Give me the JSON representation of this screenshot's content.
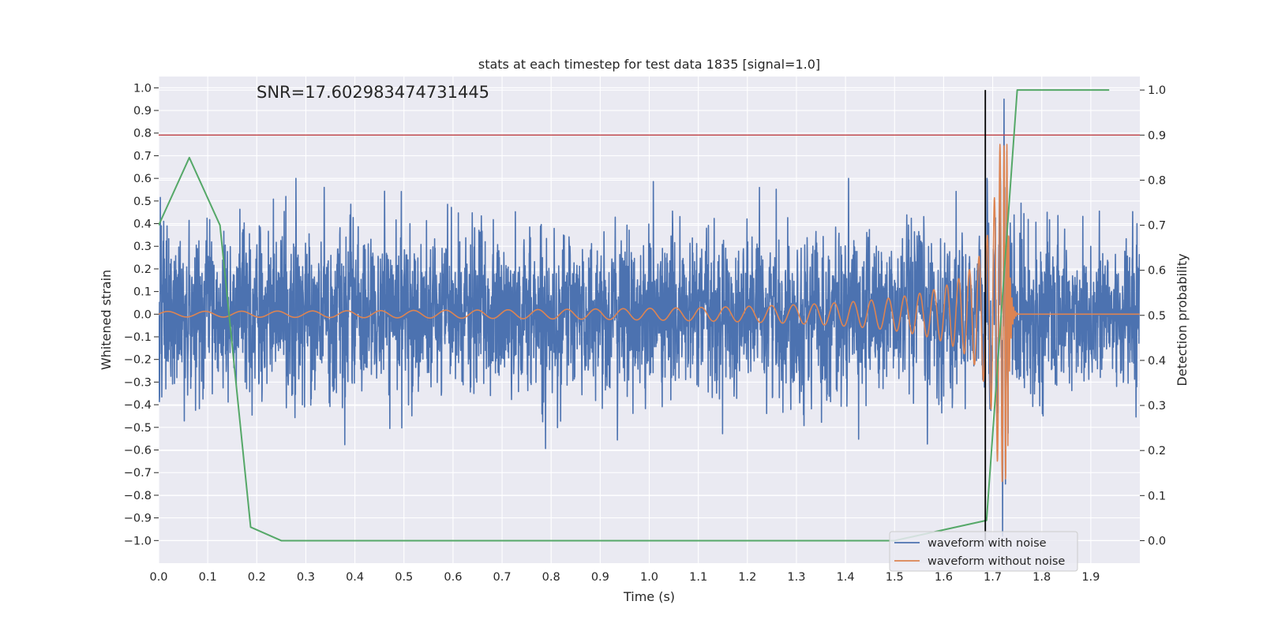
{
  "colors": {
    "background": "#eaeaf2",
    "grid": "#ffffff",
    "noisy": "#4c72b0",
    "clean": "#dd8452",
    "probability": "#55a868",
    "threshold": "#c44e52",
    "merger_marker": "#000000"
  },
  "chart_data": {
    "type": "line",
    "title": "stats at each timestep for test data 1835 [signal=1.0]",
    "annotation": "SNR=17.602983474731445",
    "xlabel": "Time (s)",
    "ylabel": "Whitened strain",
    "y2label": "Detection probability",
    "xlim": [
      0.0,
      2.0
    ],
    "ylim": [
      -1.1,
      1.05
    ],
    "y2lim": [
      -0.05,
      1.03
    ],
    "x_ticks": [
      "0.0",
      "0.1",
      "0.2",
      "0.3",
      "0.4",
      "0.5",
      "0.6",
      "0.7",
      "0.8",
      "0.9",
      "1.0",
      "1.1",
      "1.2",
      "1.3",
      "1.4",
      "1.5",
      "1.6",
      "1.7",
      "1.8",
      "1.9"
    ],
    "y_ticks": [
      "1.0",
      "0.9",
      "0.8",
      "0.7",
      "0.6",
      "0.5",
      "0.4",
      "0.3",
      "0.2",
      "0.1",
      "0.0",
      "−0.1",
      "−0.2",
      "−0.3",
      "−0.4",
      "−0.5",
      "−0.6",
      "−0.7",
      "−0.8",
      "−0.9",
      "−1.0"
    ],
    "y2_ticks": [
      "1.0",
      "0.9",
      "0.8",
      "0.7",
      "0.6",
      "0.5",
      "0.4",
      "0.3",
      "0.2",
      "0.1",
      "0.0"
    ],
    "grid": true,
    "legend_placement": "lower-right",
    "series": [
      {
        "name": "waveform with noise",
        "axis": "left",
        "style": "dense-noise",
        "noise_std": 0.16,
        "sample_rate": 2048,
        "glitch_at": 1.72,
        "glitch_extent": [
          -0.98,
          0.95
        ]
      },
      {
        "name": "waveform without noise",
        "axis": "left",
        "style": "chirp",
        "start_amplitude": 0.012,
        "peak_amplitude": 0.75,
        "start_frequency": 20,
        "merger_time": 1.73,
        "ringdown_end": 1.75
      },
      {
        "name": "",
        "axis": "right",
        "style": "probability",
        "x": [
          0.0,
          0.0625,
          0.125,
          0.1875,
          0.25,
          1.5,
          1.6875,
          1.75,
          1.9375
        ],
        "y": [
          0.7,
          0.85,
          0.7,
          0.03,
          0.0,
          0.0,
          0.045,
          1.0,
          1.0
        ]
      }
    ],
    "threshold_line": {
      "y2": 0.9
    },
    "vertical_marker": {
      "x": 1.685,
      "y2_range": [
        0.0,
        1.0
      ]
    },
    "legend": [
      "waveform with noise",
      "waveform without noise"
    ]
  }
}
